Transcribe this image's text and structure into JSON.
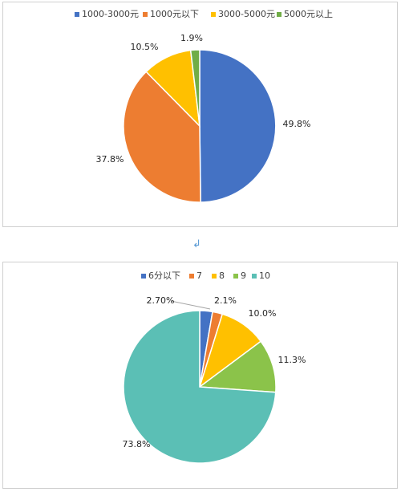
{
  "chart_data": [
    {
      "type": "pie",
      "categories": [
        "1000-3000元",
        "1000元以下",
        "3000-5000元",
        "5000元以上"
      ],
      "values": [
        49.8,
        37.8,
        10.5,
        1.9
      ],
      "labels": [
        "49.8%",
        "37.8%",
        "10.5%",
        "1.9%"
      ],
      "colors": [
        "#4472c4",
        "#ed7d31",
        "#ffc000",
        "#70ad47"
      ],
      "legend_position": "top"
    },
    {
      "type": "pie",
      "categories": [
        "6分以下",
        "7",
        "8",
        "9",
        "10"
      ],
      "values": [
        2.7,
        2.1,
        10.0,
        11.3,
        73.8
      ],
      "labels": [
        "2.70%",
        "2.1%",
        "10.0%",
        "11.3%",
        "73.8%"
      ],
      "colors": [
        "#4472c4",
        "#ed7d31",
        "#ffc000",
        "#8bc34a",
        "#5bbfb5"
      ],
      "legend_position": "top"
    }
  ],
  "separator_marker": "↲"
}
